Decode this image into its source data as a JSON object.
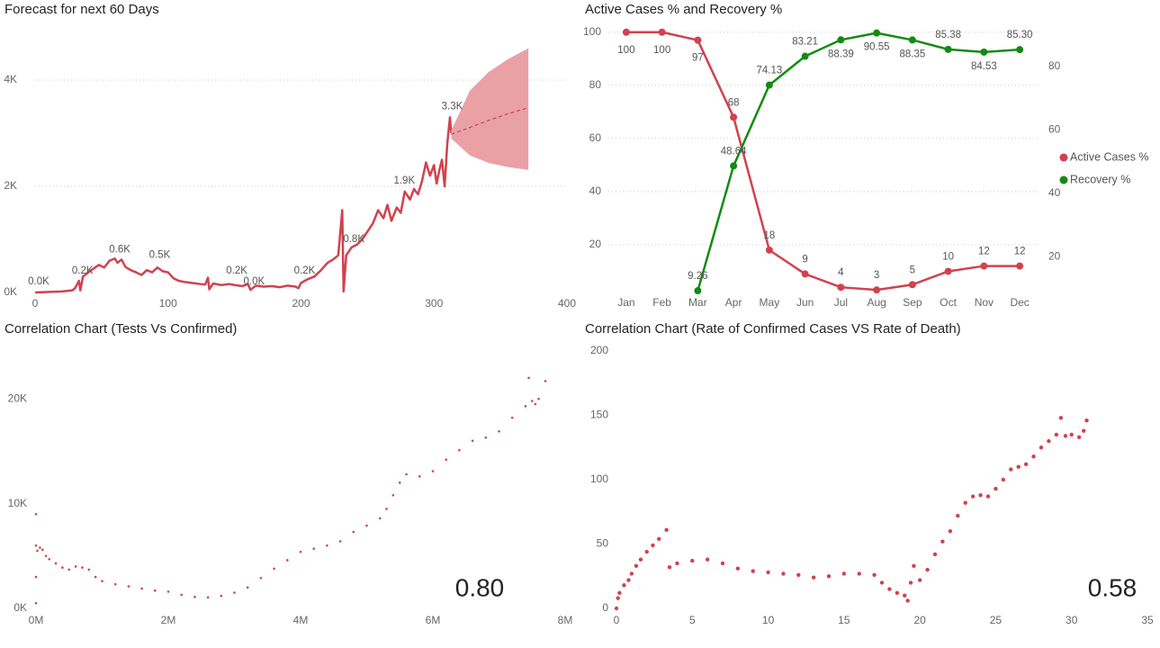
{
  "chart_data": [
    {
      "type": "line",
      "title": "Forecast for next 60 Days",
      "xlim": [
        0,
        400
      ],
      "xticks": [
        0,
        100,
        200,
        300,
        400
      ],
      "ylim": [
        0,
        5000
      ],
      "yticks": [
        {
          "value": 0,
          "label": "0K"
        },
        {
          "value": 2000,
          "label": "2K"
        },
        {
          "value": 4000,
          "label": "4K"
        }
      ],
      "grid": true,
      "x": [
        0,
        10,
        20,
        28,
        30,
        33,
        34,
        36,
        40,
        44,
        48,
        52,
        56,
        60,
        62,
        65,
        68,
        72,
        76,
        80,
        84,
        88,
        92,
        96,
        100,
        104,
        108,
        112,
        118,
        124,
        128,
        130,
        131,
        134,
        140,
        146,
        150,
        156,
        160,
        162,
        166,
        172,
        178,
        184,
        190,
        196,
        198,
        200,
        205,
        210,
        215,
        220,
        224,
        228,
        231,
        232,
        234,
        238,
        242,
        246,
        250,
        254,
        258,
        262,
        265,
        268,
        272,
        275,
        278,
        282,
        285,
        288,
        291,
        294,
        297,
        300,
        302,
        304,
        306,
        308,
        310,
        312,
        313
      ],
      "series": [
        {
          "color": "#d1424e",
          "values": [
            0,
            10,
            20,
            40,
            80,
            220,
            40,
            300,
            380,
            450,
            520,
            470,
            600,
            640,
            560,
            620,
            480,
            420,
            380,
            330,
            420,
            380,
            470,
            400,
            380,
            270,
            220,
            200,
            180,
            160,
            150,
            280,
            60,
            170,
            140,
            160,
            140,
            120,
            160,
            50,
            130,
            110,
            120,
            100,
            130,
            110,
            80,
            180,
            250,
            300,
            420,
            560,
            620,
            700,
            1550,
            20,
            700,
            850,
            900,
            1000,
            1150,
            1300,
            1550,
            1400,
            1650,
            1350,
            1600,
            1500,
            1900,
            1750,
            1950,
            1850,
            2100,
            2450,
            2200,
            2400,
            2050,
            2300,
            2500,
            2000,
            2800,
            3300,
            3000
          ]
        }
      ],
      "forecast": {
        "color": "#e9a1a6",
        "x": [
          313,
          327,
          341,
          356,
          371
        ],
        "upper": [
          3050,
          3800,
          4150,
          4400,
          4600
        ],
        "lower": [
          2900,
          2580,
          2440,
          2360,
          2310
        ],
        "mean": [
          2980,
          3110,
          3240,
          3370,
          3480
        ]
      },
      "annotations": [
        {
          "x": 0,
          "y": 0,
          "label": "0.0K"
        },
        {
          "x": 33,
          "y": 200,
          "label": "0.2K"
        },
        {
          "x": 61,
          "y": 600,
          "label": "0.6K"
        },
        {
          "x": 91,
          "y": 500,
          "label": "0.5K"
        },
        {
          "x": 149,
          "y": 200,
          "label": "0.2K"
        },
        {
          "x": 162,
          "y": 0,
          "label": "0.0K"
        },
        {
          "x": 200,
          "y": 200,
          "label": "0.2K"
        },
        {
          "x": 237,
          "y": 800,
          "label": "0.8K"
        },
        {
          "x": 275,
          "y": 1900,
          "label": "1.9K"
        },
        {
          "x": 311,
          "y": 3300,
          "label": "3.3K"
        }
      ]
    },
    {
      "type": "line",
      "title": "Active Cases % and Recovery %",
      "categories": [
        "Jan",
        "Feb",
        "Mar",
        "Apr",
        "May",
        "Jun",
        "Jul",
        "Aug",
        "Sep",
        "Oct",
        "Nov",
        "Dec"
      ],
      "ylim": [
        0,
        105
      ],
      "yticks": [
        20,
        40,
        60,
        80,
        100
      ],
      "y2lim": [
        7,
        95
      ],
      "y2ticks": [
        20,
        40,
        60,
        80
      ],
      "grid": true,
      "legend": "right",
      "series": [
        {
          "name": "Active Cases %",
          "color": "#d1424e",
          "values": [
            100,
            100,
            97,
            68,
            18,
            9,
            4,
            3,
            5,
            10,
            12,
            12
          ]
        },
        {
          "name": "Recovery %",
          "color": "#138a13",
          "axis": "y2",
          "values": [
            null,
            null,
            9.26,
            48.64,
            74.13,
            83.21,
            88.39,
            90.55,
            88.35,
            85.38,
            84.53,
            85.3
          ],
          "value_labels": [
            null,
            null,
            "9.26",
            "48.64",
            "74.13",
            "83.21",
            "88.39",
            "90.55",
            "88.35",
            "85.38",
            "84.53",
            "85.30"
          ]
        }
      ]
    },
    {
      "type": "scatter",
      "title": "Correlation Chart (Tests Vs Confirmed)",
      "xlim": [
        0,
        8000000
      ],
      "xticks": [
        {
          "value": 0,
          "label": "0M"
        },
        {
          "value": 2000000,
          "label": "2M"
        },
        {
          "value": 4000000,
          "label": "4M"
        },
        {
          "value": 6000000,
          "label": "6M"
        },
        {
          "value": 8000000,
          "label": "8M"
        }
      ],
      "ylim": [
        0,
        25000
      ],
      "yticks": [
        {
          "value": 0,
          "label": "0K"
        },
        {
          "value": 10000,
          "label": "10K"
        },
        {
          "value": 20000,
          "label": "20K"
        }
      ],
      "grid": false,
      "color": "#d1424e",
      "annotation": "0.80",
      "x": [
        0,
        0,
        0,
        0,
        20000,
        60000,
        100000,
        150000,
        200000,
        300000,
        400000,
        500000,
        600000,
        700000,
        800000,
        900000,
        1000000,
        1200000,
        1400000,
        1600000,
        1800000,
        2000000,
        2200000,
        2400000,
        2600000,
        2800000,
        3000000,
        3200000,
        3400000,
        3600000,
        3800000,
        4000000,
        4200000,
        4400000,
        4600000,
        4800000,
        5000000,
        5200000,
        5300000,
        5400000,
        5500000,
        5600000,
        5800000,
        6000000,
        6200000,
        6400000,
        6600000,
        6800000,
        7000000,
        7200000,
        7400000,
        7500000,
        7550000,
        7600000,
        7700000,
        7450000
      ],
      "values": [
        500,
        3000,
        6000,
        9000,
        5500,
        5800,
        5600,
        5000,
        4700,
        4300,
        3900,
        3700,
        4000,
        3900,
        3700,
        3000,
        2600,
        2300,
        2100,
        1900,
        1700,
        1600,
        1300,
        1100,
        1050,
        1200,
        1500,
        2000,
        2900,
        3800,
        4600,
        5400,
        5700,
        6000,
        6400,
        7300,
        7900,
        8600,
        9500,
        10800,
        12000,
        12800,
        12600,
        13100,
        14200,
        15100,
        16000,
        16300,
        16900,
        18200,
        19300,
        19800,
        19500,
        20000,
        21700,
        22000
      ]
    },
    {
      "type": "scatter",
      "title": "Correlation Chart (Rate of Confirmed Cases VS Rate of Death)",
      "xlim": [
        0,
        35
      ],
      "xticks": [
        0,
        5,
        10,
        15,
        20,
        25,
        30,
        35
      ],
      "ylim": [
        0,
        200
      ],
      "yticks": [
        0,
        50,
        100,
        150,
        200
      ],
      "grid": false,
      "color": "#d1424e",
      "annotation": "0.58",
      "x": [
        0,
        0.1,
        0.2,
        0.5,
        0.8,
        1,
        1.3,
        1.6,
        2,
        2.4,
        2.8,
        3.3,
        3.5,
        4,
        5,
        6,
        7,
        8,
        9,
        10,
        11,
        12,
        13,
        14,
        15,
        16,
        17,
        17.5,
        18,
        18.5,
        19,
        19.2,
        19.4,
        19.6,
        20,
        20.5,
        21,
        21.5,
        22,
        22.5,
        23,
        23.5,
        24,
        24.5,
        25,
        25.5,
        26,
        26.5,
        27,
        27.5,
        28,
        28.5,
        29,
        29.3,
        29.6,
        30,
        30.5,
        30.8,
        31
      ],
      "values": [
        0,
        8,
        12,
        18,
        22,
        27,
        33,
        38,
        44,
        49,
        54,
        61,
        32,
        35,
        37,
        38,
        35,
        31,
        29,
        28,
        27,
        26,
        24,
        25,
        27,
        27,
        26,
        20,
        15,
        12,
        10,
        6,
        20,
        33,
        22,
        30,
        42,
        52,
        60,
        72,
        82,
        87,
        88,
        87,
        93,
        100,
        108,
        110,
        112,
        118,
        125,
        130,
        135,
        148,
        134,
        135,
        133,
        138,
        146
      ]
    }
  ]
}
